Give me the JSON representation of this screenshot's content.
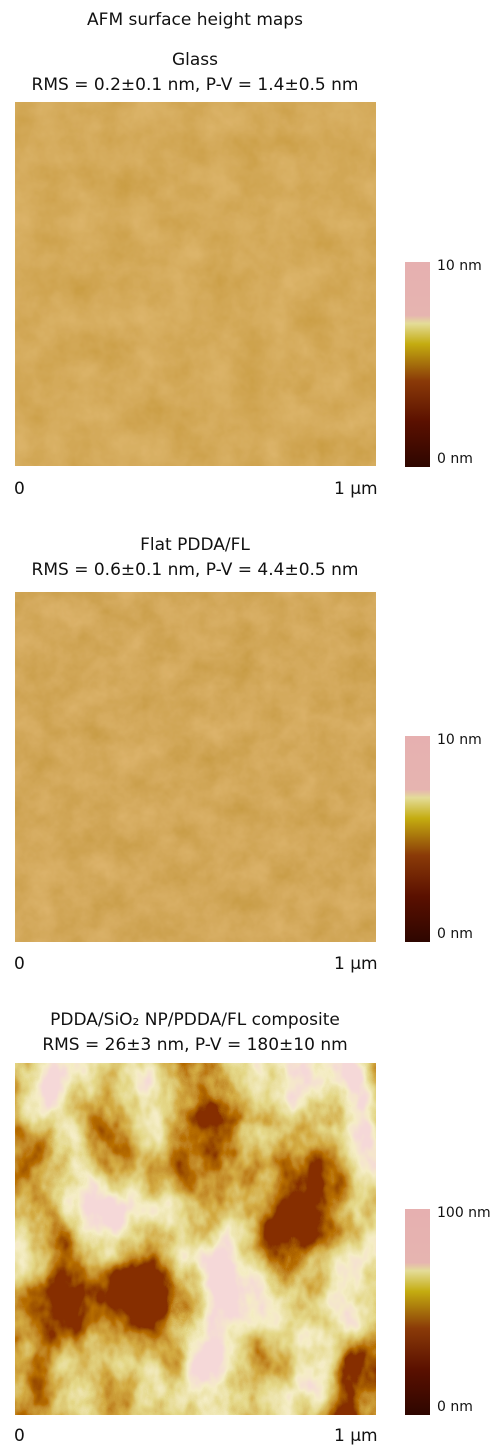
{
  "header": {
    "title": "AFM surface height maps"
  },
  "panels": [
    {
      "title": "Glass",
      "stats": "RMS = 0.2±0.1 nm, P-V = 1.4±0.5 nm",
      "x_start": "0",
      "x_end": "1 µm",
      "scale_max": "10 nm",
      "scale_min": "0 nm"
    },
    {
      "title": "Flat PDDA/FL",
      "stats": "RMS = 0.6±0.1 nm, P-V = 4.4±0.5 nm",
      "x_start": "0",
      "x_end": "1 µm",
      "scale_max": "10 nm",
      "scale_min": "0 nm"
    },
    {
      "title": "PDDA/SiO₂ NP/PDDA/FL composite",
      "stats": "RMS = 26±3 nm, P-V = 180±10 nm",
      "x_start": "0",
      "x_end": "1 µm",
      "scale_max": "100 nm",
      "scale_min": "0 nm"
    }
  ]
}
